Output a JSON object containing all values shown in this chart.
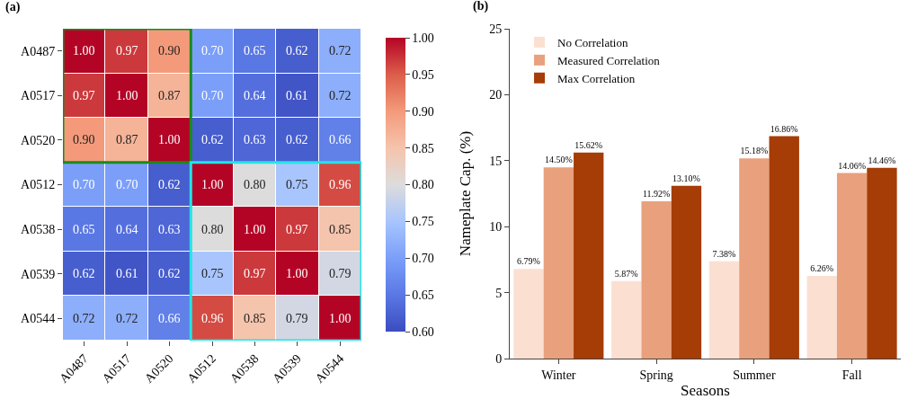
{
  "chart_data": [
    {
      "type": "heatmap",
      "title": "(a)",
      "categories": [
        "A0487",
        "A0517",
        "A0520",
        "A0512",
        "A0538",
        "A0539",
        "A0544"
      ],
      "y_categories": [
        "A0487",
        "A0517",
        "A0520",
        "A0512",
        "A0538",
        "A0539",
        "A0544"
      ],
      "cells": [
        [
          1.0,
          0.97,
          0.9,
          0.7,
          0.65,
          0.62,
          0.72
        ],
        [
          0.97,
          1.0,
          0.87,
          0.7,
          0.64,
          0.61,
          0.72
        ],
        [
          0.9,
          0.87,
          1.0,
          0.62,
          0.63,
          0.62,
          0.66
        ],
        [
          0.7,
          0.7,
          0.62,
          1.0,
          0.8,
          0.75,
          0.96
        ],
        [
          0.65,
          0.64,
          0.63,
          0.8,
          1.0,
          0.97,
          0.85
        ],
        [
          0.62,
          0.61,
          0.62,
          0.75,
          0.97,
          1.0,
          0.79
        ],
        [
          0.72,
          0.72,
          0.66,
          0.96,
          0.85,
          0.79,
          1.0
        ]
      ],
      "cell_labels": [
        [
          "1.00",
          "0.97",
          "0.90",
          "0.70",
          "0.65",
          "0.62",
          "0.72"
        ],
        [
          "0.97",
          "1.00",
          "0.87",
          "0.70",
          "0.64",
          "0.61",
          "0.72"
        ],
        [
          "0.90",
          "0.87",
          "1.00",
          "0.62",
          "0.63",
          "0.62",
          "0.66"
        ],
        [
          "0.70",
          "0.70",
          "0.62",
          "1.00",
          "0.80",
          "0.75",
          "0.96"
        ],
        [
          "0.65",
          "0.64",
          "0.63",
          "0.80",
          "1.00",
          "0.97",
          "0.85"
        ],
        [
          "0.62",
          "0.61",
          "0.62",
          "0.75",
          "0.97",
          "1.00",
          "0.79"
        ],
        [
          "0.72",
          "0.72",
          "0.66",
          "0.96",
          "0.85",
          "0.79",
          "1.00"
        ]
      ],
      "clim": [
        0.6,
        1.0
      ],
      "cticks": [
        {
          "value": 0.6,
          "label": "0.60"
        },
        {
          "value": 0.65,
          "label": "0.65"
        },
        {
          "value": 0.7,
          "label": "0.70"
        },
        {
          "value": 0.75,
          "label": "0.75"
        },
        {
          "value": 0.8,
          "label": "0.80"
        },
        {
          "value": 0.85,
          "label": "0.85"
        },
        {
          "value": 0.9,
          "label": "0.90"
        },
        {
          "value": 0.95,
          "label": "0.95"
        },
        {
          "value": 1.0,
          "label": "1.00"
        }
      ]
    },
    {
      "type": "bar",
      "title": "(b)",
      "xlabel": "Seasons",
      "ylabel": "Nameplate Cap. (%)",
      "categories": [
        "Winter",
        "Spring",
        "Summer",
        "Fall"
      ],
      "series": [
        {
          "name": "No Correlation",
          "color": "#fbe0d2",
          "values": [
            6.79,
            5.87,
            7.38,
            6.26
          ],
          "value_labels": [
            "6.79%",
            "5.87%",
            "7.38%",
            "6.26%"
          ]
        },
        {
          "name": "Measured Correlation",
          "color": "#e9a07c",
          "values": [
            14.5,
            11.92,
            15.18,
            14.06
          ],
          "value_labels": [
            "14.50%",
            "11.92%",
            "15.18%",
            "14.06%"
          ]
        },
        {
          "name": "Max Correlation",
          "color": "#a63c06",
          "values": [
            15.62,
            13.1,
            16.86,
            14.46
          ],
          "value_labels": [
            "15.62%",
            "13.10%",
            "16.86%",
            "14.46%"
          ]
        }
      ],
      "ylim": [
        0,
        25
      ],
      "yticks": [
        0,
        5,
        10,
        15,
        20,
        25
      ],
      "grid": false,
      "legend": "top left"
    }
  ]
}
